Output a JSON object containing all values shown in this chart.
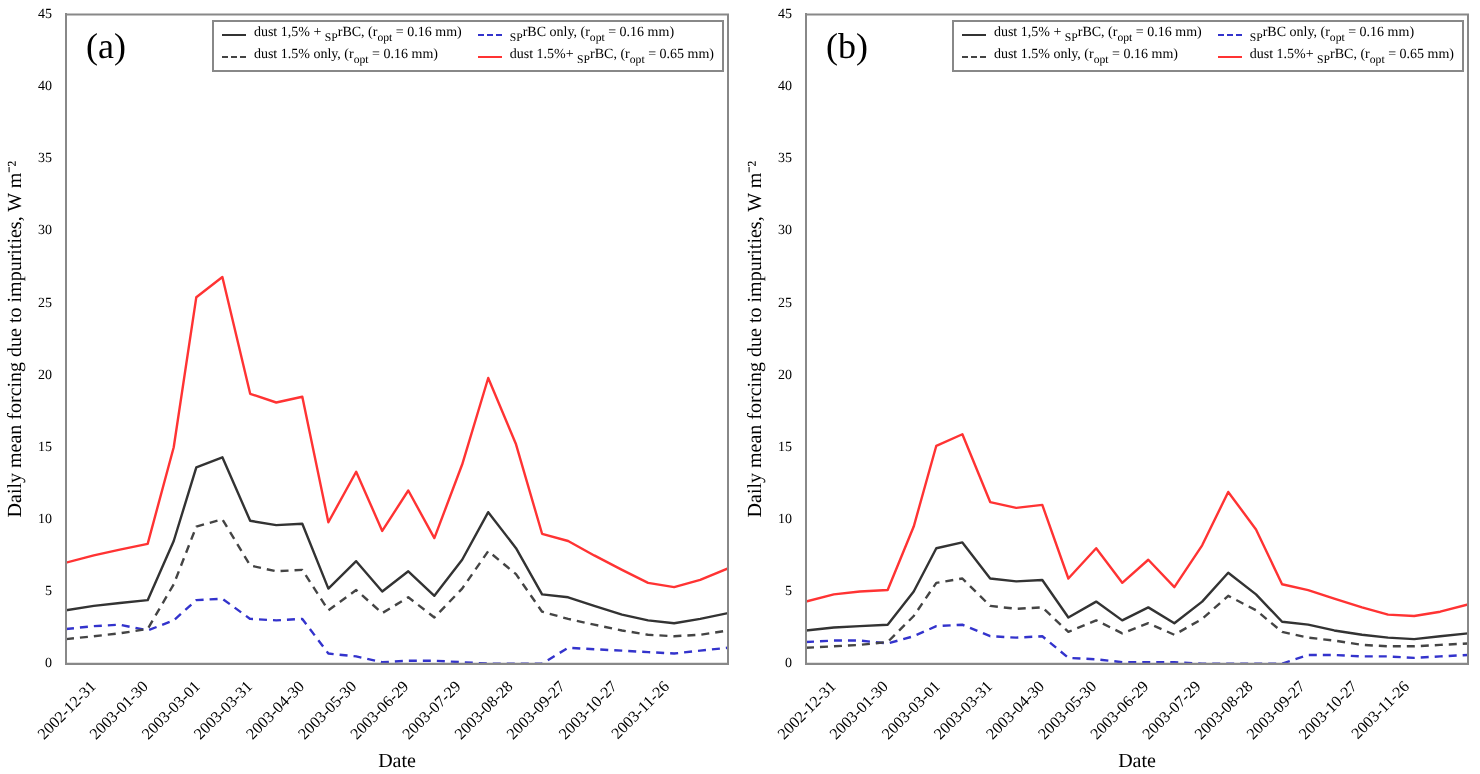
{
  "chart_data": [
    {
      "type": "line",
      "annotations": [
        "(a)"
      ],
      "xlabel": "Date",
      "ylabel": "Daily mean forcing due to impurities, W m⁻²",
      "legend": "top right",
      "grid": false,
      "marker": "none",
      "x": [
        "2002-12-15",
        "2002-12-31",
        "2003-01-15",
        "2003-01-31",
        "2003-02-15",
        "2003-02-28",
        "2003-03-15",
        "2003-03-31",
        "2003-04-15",
        "2003-04-30",
        "2003-05-15",
        "2003-05-31",
        "2003-06-15",
        "2003-06-30",
        "2003-07-15",
        "2003-07-31",
        "2003-08-15",
        "2003-08-31",
        "2003-09-15",
        "2003-09-30",
        "2003-10-15",
        "2003-10-31",
        "2003-11-15",
        "2003-11-30",
        "2003-12-15",
        "2003-12-31"
      ],
      "xlim": [
        "2002-12-15",
        "2003-12-31"
      ],
      "xticks": [
        "2002-12-31",
        "2003-01-30",
        "2003-03-01",
        "2003-03-31",
        "2003-04-30",
        "2003-05-30",
        "2003-06-29",
        "2003-07-29",
        "2003-08-28",
        "2003-09-27",
        "2003-10-27",
        "2003-11-26"
      ],
      "ylim": [
        0,
        45
      ],
      "yticks": [
        0,
        5,
        10,
        15,
        20,
        25,
        30,
        35,
        40,
        45
      ],
      "series": [
        {
          "name": "dust 1,5% + $_{SP}$rBC, (r$_{opt}$ = 0.16 mm)",
          "color": "#333333",
          "line_style": "solid",
          "values": [
            3.7,
            4.0,
            4.2,
            4.4,
            8.5,
            13.6,
            14.3,
            9.9,
            9.6,
            9.7,
            5.2,
            7.1,
            5.0,
            6.4,
            4.7,
            7.2,
            10.5,
            8.0,
            4.8,
            4.6,
            4.0,
            3.4,
            3.0,
            2.8,
            3.1,
            3.5
          ]
        },
        {
          "name": "dust 1.5% only, (r$_{opt}$ = 0.16 mm)",
          "color": "#444444",
          "line_style": "dashed",
          "values": [
            1.7,
            1.9,
            2.1,
            2.4,
            5.5,
            9.5,
            10.0,
            6.8,
            6.4,
            6.5,
            3.7,
            5.1,
            3.5,
            4.6,
            3.2,
            5.2,
            7.8,
            6.2,
            3.6,
            3.1,
            2.7,
            2.3,
            2.0,
            1.9,
            2.0,
            2.3
          ]
        },
        {
          "name": "$_{SP}$rBC only, (r$_{opt}$ = 0.16 mm)",
          "color": "#3333cc",
          "line_style": "dashed",
          "values": [
            2.4,
            2.6,
            2.7,
            2.3,
            3.0,
            4.4,
            4.5,
            3.1,
            3.0,
            3.1,
            0.7,
            0.5,
            0.1,
            0.2,
            0.2,
            0.1,
            0.0,
            0.0,
            0.0,
            1.1,
            1.0,
            0.9,
            0.8,
            0.7,
            0.9,
            1.1
          ]
        },
        {
          "name": "dust 1.5%+ $_{SP}$rBC, (r$_{opt}$ = 0.65 mm)",
          "color": "#ff3333",
          "line_style": "solid",
          "values": [
            7.0,
            7.5,
            7.9,
            8.3,
            15.0,
            25.4,
            26.8,
            18.7,
            18.1,
            18.5,
            9.8,
            13.3,
            9.2,
            12.0,
            8.7,
            13.8,
            19.8,
            15.2,
            9.0,
            8.5,
            7.5,
            6.5,
            5.6,
            5.3,
            5.8,
            6.6
          ]
        }
      ]
    },
    {
      "type": "line",
      "annotations": [
        "(b)"
      ],
      "xlabel": "Date",
      "ylabel": "Daily mean forcing due to impurities, W m⁻²",
      "legend": "top right",
      "grid": false,
      "marker": "none",
      "x": [
        "2002-12-15",
        "2002-12-31",
        "2003-01-15",
        "2003-01-31",
        "2003-02-15",
        "2003-02-28",
        "2003-03-15",
        "2003-03-31",
        "2003-04-15",
        "2003-04-30",
        "2003-05-15",
        "2003-05-31",
        "2003-06-15",
        "2003-06-30",
        "2003-07-15",
        "2003-07-31",
        "2003-08-15",
        "2003-08-31",
        "2003-09-15",
        "2003-09-30",
        "2003-10-15",
        "2003-10-31",
        "2003-11-15",
        "2003-11-30",
        "2003-12-15",
        "2003-12-31"
      ],
      "xlim": [
        "2002-12-15",
        "2003-12-31"
      ],
      "xticks": [
        "2002-12-31",
        "2003-01-30",
        "2003-03-01",
        "2003-03-31",
        "2003-04-30",
        "2003-05-30",
        "2003-06-29",
        "2003-07-29",
        "2003-08-28",
        "2003-09-27",
        "2003-10-27",
        "2003-11-26"
      ],
      "ylim": [
        0,
        45
      ],
      "yticks": [
        0,
        5,
        10,
        15,
        20,
        25,
        30,
        35,
        40,
        45
      ],
      "series": [
        {
          "name": "dust 1,5% + $_{SP}$rBC, (r$_{opt}$ = 0.16 mm)",
          "color": "#333333",
          "line_style": "solid",
          "values": [
            2.3,
            2.5,
            2.6,
            2.7,
            5.0,
            8.0,
            8.4,
            5.9,
            5.7,
            5.8,
            3.2,
            4.3,
            3.0,
            3.9,
            2.8,
            4.3,
            6.3,
            4.8,
            2.9,
            2.7,
            2.3,
            2.0,
            1.8,
            1.7,
            1.9,
            2.1
          ]
        },
        {
          "name": "dust 1.5% only, (r$_{opt}$ = 0.16 mm)",
          "color": "#444444",
          "line_style": "dashed",
          "values": [
            1.1,
            1.2,
            1.3,
            1.5,
            3.3,
            5.6,
            5.9,
            4.0,
            3.8,
            3.9,
            2.2,
            3.0,
            2.1,
            2.8,
            2.0,
            3.1,
            4.7,
            3.7,
            2.2,
            1.8,
            1.6,
            1.3,
            1.2,
            1.2,
            1.3,
            1.4
          ]
        },
        {
          "name": "$_{SP}$rBC only, (r$_{opt}$ = 0.16 mm)",
          "color": "#3333cc",
          "line_style": "dashed",
          "values": [
            1.5,
            1.6,
            1.6,
            1.4,
            1.9,
            2.6,
            2.7,
            1.9,
            1.8,
            1.9,
            0.4,
            0.3,
            0.1,
            0.1,
            0.1,
            0.0,
            0.0,
            0.0,
            0.0,
            0.6,
            0.6,
            0.5,
            0.5,
            0.4,
            0.5,
            0.6
          ]
        },
        {
          "name": "dust 1.5%+ $_{SP}$rBC, (r$_{opt}$ = 0.65 mm)",
          "color": "#ff3333",
          "line_style": "solid",
          "values": [
            4.3,
            4.8,
            5.0,
            5.1,
            9.5,
            15.1,
            15.9,
            11.2,
            10.8,
            11.0,
            5.9,
            8.0,
            5.6,
            7.2,
            5.3,
            8.2,
            11.9,
            9.3,
            5.5,
            5.1,
            4.5,
            3.9,
            3.4,
            3.3,
            3.6,
            4.1
          ]
        }
      ]
    }
  ]
}
